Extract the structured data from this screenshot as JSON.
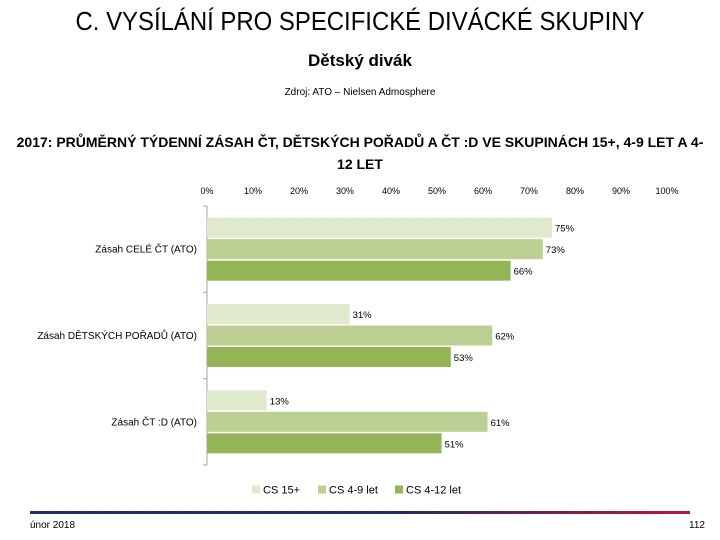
{
  "header": {
    "title": "C. VYSÍLÁNÍ PRO SPECIFICKÉ DIVÁCKÉ SKUPINY",
    "subtitle": "Dětský divák",
    "source": "Zdroj: ATO – Nielsen Admosphere"
  },
  "footer": {
    "date": "únor 2018",
    "page_number": "112",
    "line_color_left": "#1f2d6b",
    "line_color_right": "#c0143c"
  },
  "chart_data": {
    "type": "bar",
    "orientation": "horizontal",
    "title": "2017: PRŮMĚRNÝ TÝDENNÍ ZÁSAH ČT, DĚTSKÝCH POŘADŮ A ČT :D VE SKUPINÁCH 15+, 4-9 LET A 4-12 LET",
    "categories": [
      "Zásah CELÉ ČT (ATO)",
      "Zásah DĚTSKÝCH POŘADŮ (ATO)",
      "Zásah ČT :D (ATO)"
    ],
    "series": [
      {
        "name": "CS 15+",
        "values": [
          75,
          31,
          13
        ],
        "color": "#dfe9cb"
      },
      {
        "name": "CS 4-9 let",
        "values": [
          73,
          62,
          61
        ],
        "color": "#bccf93"
      },
      {
        "name": "CS 4-12 let",
        "values": [
          66,
          53,
          51
        ],
        "color": "#93b556"
      }
    ],
    "value_labels": [
      [
        "75%",
        "31%",
        "13%"
      ],
      [
        "73%",
        "62%",
        "61%"
      ],
      [
        "66%",
        "53%",
        "51%"
      ]
    ],
    "xlim": [
      0,
      100
    ],
    "x_ticks": [
      "0%",
      "10%",
      "20%",
      "30%",
      "40%",
      "50%",
      "60%",
      "70%",
      "80%",
      "90%",
      "100%"
    ],
    "x_tick_values": [
      0,
      10,
      20,
      30,
      40,
      50,
      60,
      70,
      80,
      90,
      100
    ],
    "x_axis_position": "top",
    "legend_position": "bottom",
    "grid": false
  }
}
